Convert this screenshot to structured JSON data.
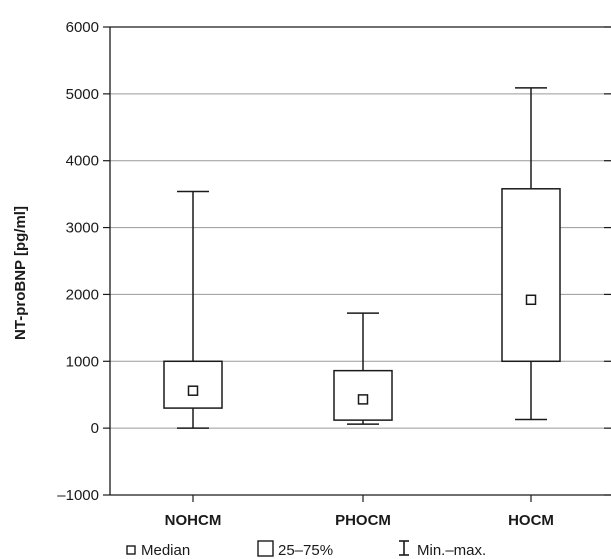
{
  "chart_data": {
    "type": "box",
    "ylabel": "NT-proBNP [pg/ml]",
    "xlabel": "",
    "ylim": [
      -1000,
      6000
    ],
    "yticks": [
      -1000,
      0,
      1000,
      2000,
      3000,
      4000,
      5000,
      6000
    ],
    "ytick_labels": [
      "–1000",
      "0",
      "1000",
      "2000",
      "3000",
      "4000",
      "5000",
      "6000"
    ],
    "grid": true,
    "categories": [
      "NOHCM",
      "PHOCM",
      "HOCM"
    ],
    "boxes": [
      {
        "category": "NOHCM",
        "min": 0,
        "q1": 300,
        "median": 560,
        "q3": 1000,
        "max": 3540
      },
      {
        "category": "PHOCM",
        "min": 60,
        "q1": 120,
        "median": 430,
        "q3": 860,
        "max": 1720
      },
      {
        "category": "HOCM",
        "min": 130,
        "q1": 1000,
        "median": 1920,
        "q3": 3580,
        "max": 5090
      }
    ],
    "legend": {
      "placement": "bottom",
      "items": [
        "Median",
        "25–75%",
        "Min.–max."
      ]
    }
  },
  "colors": {
    "axis": "#1a1a1a",
    "grid": "#9a9a9a",
    "box_fill": "#ffffff"
  }
}
